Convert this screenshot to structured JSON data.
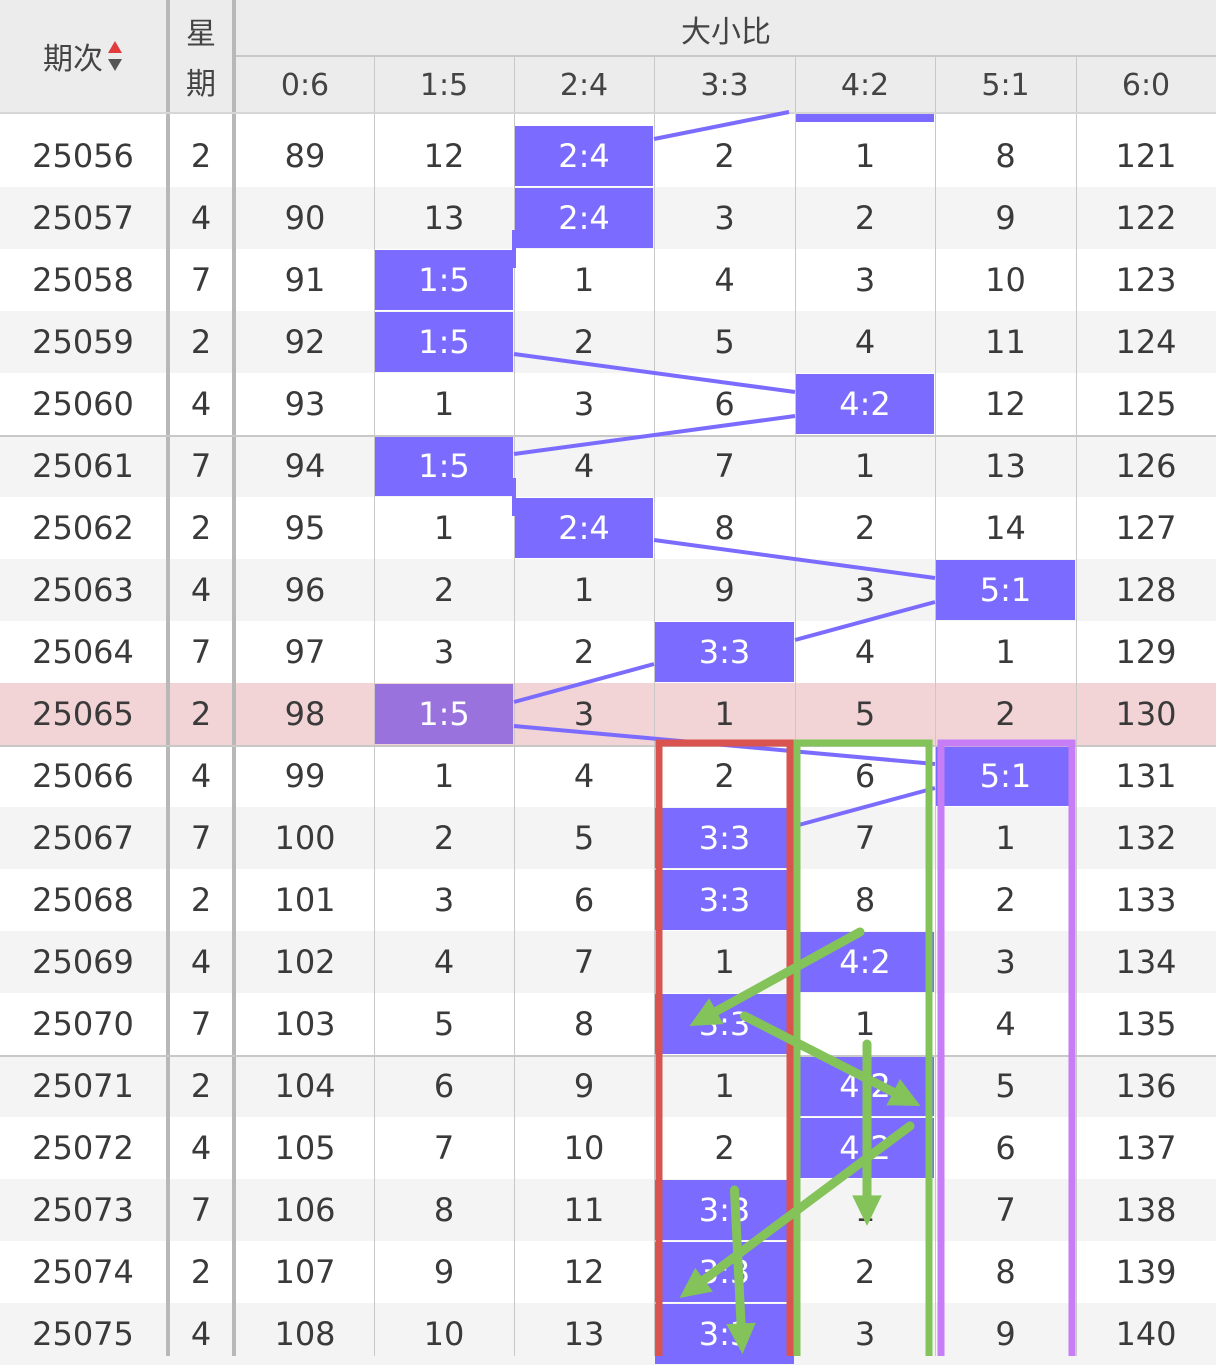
{
  "header": {
    "period_label": "期次",
    "weekday_label_1": "星",
    "weekday_label_2": "期",
    "group_label": "大小比",
    "columns": [
      "0:6",
      "1:5",
      "2:4",
      "3:3",
      "4:2",
      "5:1",
      "6:0"
    ]
  },
  "colors": {
    "hit": "#7b6cff",
    "highlight_row": "#f2d3d6",
    "red_box": "#d9534f",
    "green_box": "#84c35a",
    "purple_box": "#c77df5"
  },
  "top_partial_hit_column": "4:2",
  "rows": [
    {
      "period": "25056",
      "weekday": "2",
      "values": [
        "89",
        "12",
        "2:4",
        "2",
        "1",
        "8",
        "121"
      ],
      "hit": 2
    },
    {
      "period": "25057",
      "weekday": "4",
      "values": [
        "90",
        "13",
        "2:4",
        "3",
        "2",
        "9",
        "122"
      ],
      "hit": 2
    },
    {
      "period": "25058",
      "weekday": "7",
      "values": [
        "91",
        "1:5",
        "1",
        "4",
        "3",
        "10",
        "123"
      ],
      "hit": 1
    },
    {
      "period": "25059",
      "weekday": "2",
      "values": [
        "92",
        "1:5",
        "2",
        "5",
        "4",
        "11",
        "124"
      ],
      "hit": 1
    },
    {
      "period": "25060",
      "weekday": "4",
      "values": [
        "93",
        "1",
        "3",
        "6",
        "4:2",
        "12",
        "125"
      ],
      "hit": 4
    },
    {
      "period": "25061",
      "weekday": "7",
      "values": [
        "94",
        "1:5",
        "4",
        "7",
        "1",
        "13",
        "126"
      ],
      "hit": 1
    },
    {
      "period": "25062",
      "weekday": "2",
      "values": [
        "95",
        "1",
        "2:4",
        "8",
        "2",
        "14",
        "127"
      ],
      "hit": 2
    },
    {
      "period": "25063",
      "weekday": "4",
      "values": [
        "96",
        "2",
        "1",
        "9",
        "3",
        "5:1",
        "128"
      ],
      "hit": 5
    },
    {
      "period": "25064",
      "weekday": "7",
      "values": [
        "97",
        "3",
        "2",
        "3:3",
        "4",
        "1",
        "129"
      ],
      "hit": 3
    },
    {
      "period": "25065",
      "weekday": "2",
      "values": [
        "98",
        "1:5",
        "3",
        "1",
        "5",
        "2",
        "130"
      ],
      "hit": 1,
      "highlight": true
    },
    {
      "period": "25066",
      "weekday": "4",
      "values": [
        "99",
        "1",
        "4",
        "2",
        "6",
        "5:1",
        "131"
      ],
      "hit": 5
    },
    {
      "period": "25067",
      "weekday": "7",
      "values": [
        "100",
        "2",
        "5",
        "3:3",
        "7",
        "1",
        "132"
      ],
      "hit": 3
    },
    {
      "period": "25068",
      "weekday": "2",
      "values": [
        "101",
        "3",
        "6",
        "3:3",
        "8",
        "2",
        "133"
      ],
      "hit": 3
    },
    {
      "period": "25069",
      "weekday": "4",
      "values": [
        "102",
        "4",
        "7",
        "1",
        "4:2",
        "3",
        "134"
      ],
      "hit": 4
    },
    {
      "period": "25070",
      "weekday": "7",
      "values": [
        "103",
        "5",
        "8",
        "3:3",
        "1",
        "4",
        "135"
      ],
      "hit": 3
    },
    {
      "period": "25071",
      "weekday": "2",
      "values": [
        "104",
        "6",
        "9",
        "1",
        "4:2",
        "5",
        "136"
      ],
      "hit": 4
    },
    {
      "period": "25072",
      "weekday": "4",
      "values": [
        "105",
        "7",
        "10",
        "2",
        "4:2",
        "6",
        "137"
      ],
      "hit": 4
    },
    {
      "period": "25073",
      "weekday": "7",
      "values": [
        "106",
        "8",
        "11",
        "3:3",
        "1",
        "7",
        "138"
      ],
      "hit": 3
    },
    {
      "period": "25074",
      "weekday": "2",
      "values": [
        "107",
        "9",
        "12",
        "3:3",
        "2",
        "8",
        "139"
      ],
      "hit": 3
    },
    {
      "period": "25075",
      "weekday": "4",
      "values": [
        "108",
        "10",
        "13",
        "3:3",
        "3",
        "9",
        "140"
      ],
      "hit": 3
    }
  ]
}
